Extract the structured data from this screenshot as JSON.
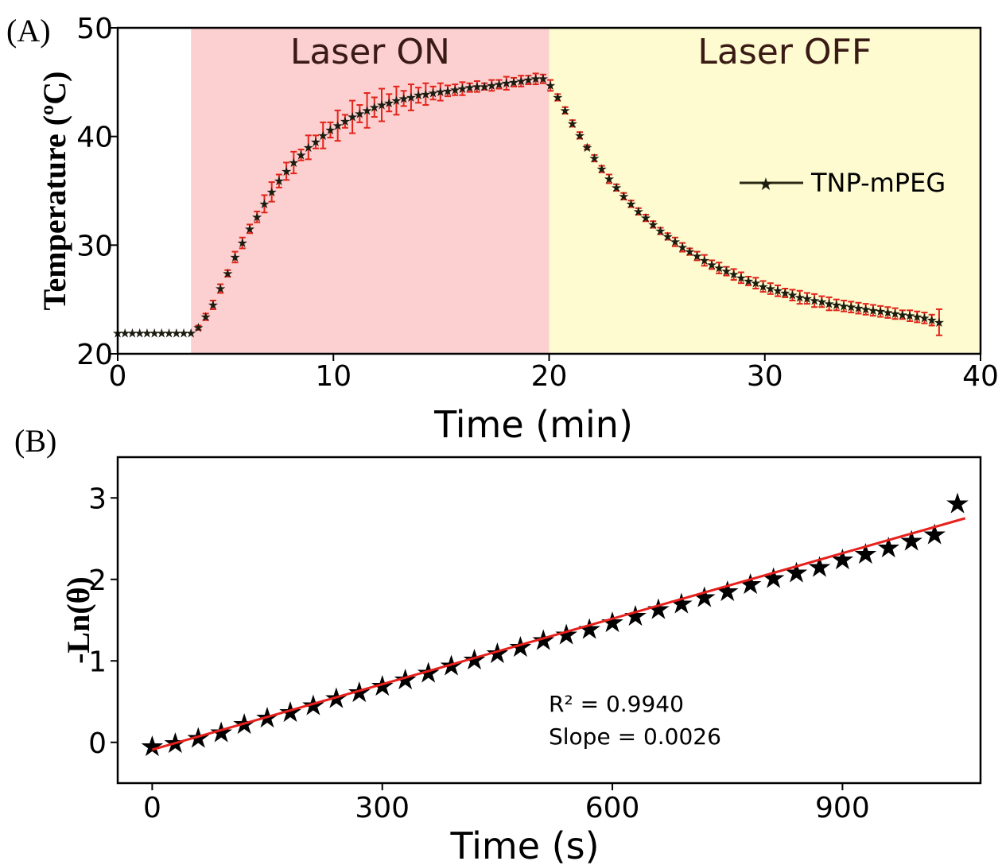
{
  "chart_data": [
    {
      "panel": "(A)",
      "type": "scatter",
      "xlabel": "Time (min)",
      "ylabel": "Temperature (ºC)",
      "xlim": [
        0,
        40
      ],
      "ylim": [
        20,
        50
      ],
      "xticks": [
        0,
        10,
        20,
        30,
        40
      ],
      "yticks": [
        20,
        30,
        40,
        50
      ],
      "regions": [
        {
          "label": "Laser ON",
          "x0": 3.4,
          "x1": 20,
          "color": "#fcd0d0"
        },
        {
          "label": "Laser OFF",
          "x0": 20,
          "x1": 40,
          "color": "#fdfbcf"
        }
      ],
      "legend": {
        "label": "TNP-mPEG",
        "position": "right"
      },
      "marker_color": "#1c1c10",
      "error_color": "#e2241a",
      "series": [
        {
          "name": "TNP-mPEG",
          "x": [
            0,
            0.34,
            0.68,
            1.02,
            1.36,
            1.7,
            2.04,
            2.38,
            2.72,
            3.06,
            3.4,
            3.74,
            4.08,
            4.42,
            4.76,
            5.1,
            5.44,
            5.78,
            6.12,
            6.46,
            6.8,
            7.14,
            7.48,
            7.82,
            8.16,
            8.5,
            8.84,
            9.18,
            9.52,
            9.86,
            10.2,
            10.54,
            10.88,
            11.22,
            11.56,
            11.9,
            12.24,
            12.58,
            12.92,
            13.26,
            13.6,
            13.94,
            14.28,
            14.62,
            14.96,
            15.3,
            15.64,
            15.98,
            16.32,
            16.66,
            17.0,
            17.34,
            17.68,
            18.02,
            18.36,
            18.7,
            19.04,
            19.38,
            19.72,
            20.06,
            20.4,
            20.74,
            21.08,
            21.42,
            21.76,
            22.1,
            22.44,
            22.78,
            23.12,
            23.46,
            23.8,
            24.14,
            24.48,
            24.82,
            25.16,
            25.5,
            25.84,
            26.18,
            26.52,
            26.86,
            27.2,
            27.54,
            27.88,
            28.22,
            28.56,
            28.9,
            29.24,
            29.58,
            29.92,
            30.26,
            30.6,
            30.94,
            31.28,
            31.62,
            31.96,
            32.3,
            32.64,
            32.98,
            33.32,
            33.66,
            34.0,
            34.34,
            34.68,
            35.02,
            35.36,
            35.7,
            36.04,
            36.38,
            36.72,
            37.06,
            37.4,
            37.74,
            38.08
          ],
          "y": [
            21.9,
            21.9,
            21.9,
            21.9,
            21.9,
            21.9,
            21.9,
            21.9,
            21.9,
            21.9,
            21.9,
            22.4,
            23.4,
            24.5,
            26.0,
            27.4,
            28.9,
            30.2,
            31.5,
            32.6,
            33.8,
            34.9,
            35.9,
            36.8,
            37.6,
            38.3,
            39.0,
            39.5,
            40.1,
            40.6,
            41.0,
            41.4,
            41.8,
            42.1,
            42.4,
            42.7,
            42.9,
            43.1,
            43.3,
            43.5,
            43.6,
            43.8,
            43.9,
            44.0,
            44.1,
            44.2,
            44.3,
            44.4,
            44.5,
            44.6,
            44.6,
            44.7,
            44.8,
            44.9,
            45.0,
            45.1,
            45.2,
            45.3,
            45.3,
            44.7,
            43.6,
            42.4,
            41.2,
            40.1,
            39.0,
            38.0,
            37.0,
            36.1,
            35.3,
            34.5,
            33.8,
            33.1,
            32.5,
            31.9,
            31.3,
            30.8,
            30.3,
            29.8,
            29.4,
            29.0,
            28.6,
            28.2,
            27.9,
            27.6,
            27.3,
            27.0,
            26.7,
            26.5,
            26.2,
            26.0,
            25.8,
            25.6,
            25.4,
            25.2,
            25.1,
            24.9,
            24.8,
            24.6,
            24.5,
            24.4,
            24.3,
            24.2,
            24.1,
            24.0,
            23.9,
            23.8,
            23.7,
            23.6,
            23.5,
            23.4,
            23.3,
            23.1,
            22.9
          ],
          "error": [
            0,
            0,
            0,
            0,
            0,
            0,
            0,
            0,
            0,
            0,
            0,
            0.2,
            0.3,
            0.4,
            0.4,
            0.3,
            0.5,
            0.5,
            0.4,
            0.5,
            0.8,
            0.9,
            0.6,
            0.8,
            1.0,
            0.5,
            1.1,
            0.6,
            1.2,
            0.7,
            1.4,
            0.6,
            1.5,
            0.8,
            1.6,
            0.9,
            1.5,
            0.8,
            1.3,
            0.7,
            1.2,
            0.7,
            1.0,
            0.6,
            0.8,
            0.5,
            0.5,
            0.6,
            0.4,
            0.5,
            0.3,
            0.5,
            0.4,
            0.6,
            0.4,
            0.5,
            0.4,
            0.5,
            0.4,
            0.5,
            0.3,
            0.3,
            0.3,
            0.3,
            0.2,
            0.3,
            0.3,
            0.4,
            0.3,
            0.3,
            0.3,
            0.3,
            0.3,
            0.3,
            0.3,
            0.3,
            0.4,
            0.4,
            0.3,
            0.4,
            0.5,
            0.4,
            0.5,
            0.4,
            0.5,
            0.5,
            0.4,
            0.5,
            0.5,
            0.5,
            0.5,
            0.4,
            0.5,
            0.6,
            0.5,
            0.6,
            0.5,
            0.6,
            0.5,
            0.5,
            0.5,
            0.5,
            0.5,
            0.5,
            0.5,
            0.5,
            0.5,
            0.4,
            0.5,
            0.5,
            0.5,
            0.5,
            1.2
          ]
        }
      ]
    },
    {
      "panel": "(B)",
      "type": "scatter",
      "xlabel": "Time (s)",
      "ylabel": "-Ln(θ)",
      "xlim": [
        -45,
        1080
      ],
      "ylim": [
        -0.5,
        3.5
      ],
      "xticks": [
        0,
        300,
        600,
        900
      ],
      "yticks": [
        0,
        1,
        2,
        3
      ],
      "annotations": [
        "R² = 0.9940",
        "Slope = 0.0026"
      ],
      "fit_line": {
        "color": "#e8201c",
        "x": [
          0,
          1060
        ],
        "y": [
          -0.09,
          2.75
        ],
        "slope": 0.0026,
        "r2": 0.994
      },
      "series": [
        {
          "x": [
            0,
            30,
            60,
            90,
            120,
            150,
            180,
            210,
            240,
            270,
            300,
            330,
            360,
            390,
            420,
            450,
            480,
            510,
            540,
            570,
            600,
            630,
            660,
            690,
            720,
            750,
            780,
            810,
            840,
            870,
            900,
            930,
            960,
            990,
            1020,
            1050
          ],
          "y": [
            -0.04,
            0.0,
            0.06,
            0.13,
            0.23,
            0.31,
            0.38,
            0.46,
            0.55,
            0.62,
            0.7,
            0.78,
            0.86,
            0.95,
            1.02,
            1.1,
            1.18,
            1.26,
            1.33,
            1.4,
            1.48,
            1.56,
            1.64,
            1.71,
            1.79,
            1.86,
            1.95,
            2.02,
            2.09,
            2.16,
            2.25,
            2.32,
            2.4,
            2.48,
            2.56,
            2.94
          ]
        }
      ]
    }
  ]
}
